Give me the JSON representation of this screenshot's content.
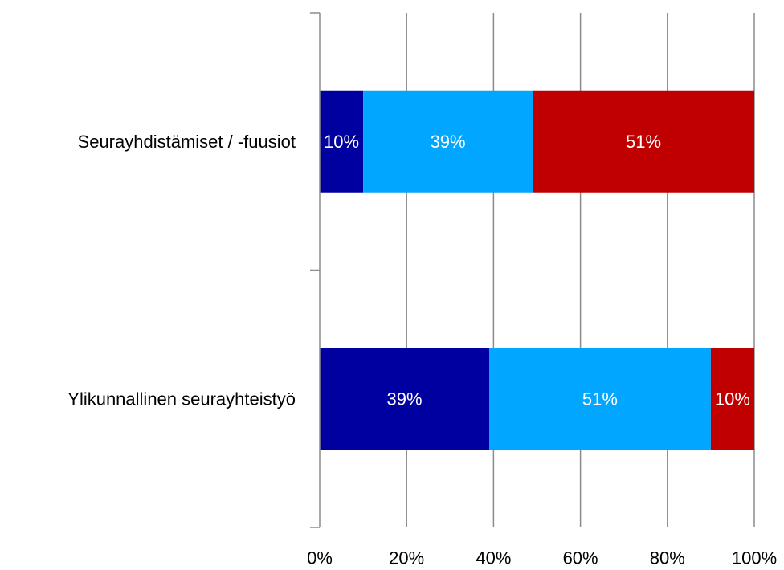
{
  "chart_data": {
    "type": "bar",
    "orientation": "horizontal",
    "stacked": true,
    "percent_stacked": true,
    "categories": [
      "Seurayhdistämiset / -fuusiot",
      "Ylikunnallinen seurayhteistyö"
    ],
    "series": [
      {
        "color": "#0000A0",
        "values": [
          10,
          39
        ],
        "labels": [
          "10%",
          "39%"
        ]
      },
      {
        "color": "#00A6FF",
        "values": [
          39,
          51
        ],
        "labels": [
          "39%",
          "51%"
        ]
      },
      {
        "color": "#C00000",
        "values": [
          51,
          10
        ],
        "labels": [
          "51%",
          "10%"
        ]
      }
    ],
    "xlim": [
      0,
      100
    ],
    "x_ticks": [
      0,
      20,
      40,
      60,
      80,
      100
    ],
    "x_tick_labels": [
      "0%",
      "20%",
      "40%",
      "60%",
      "80%",
      "100%"
    ],
    "grid": true,
    "legend": "none",
    "title": "",
    "xlabel": "",
    "ylabel": "",
    "colors": {
      "grid": "#8C8C8C",
      "axis": "#8C8C8C",
      "text": "#000000",
      "data_label": "#FFFFFF"
    }
  }
}
